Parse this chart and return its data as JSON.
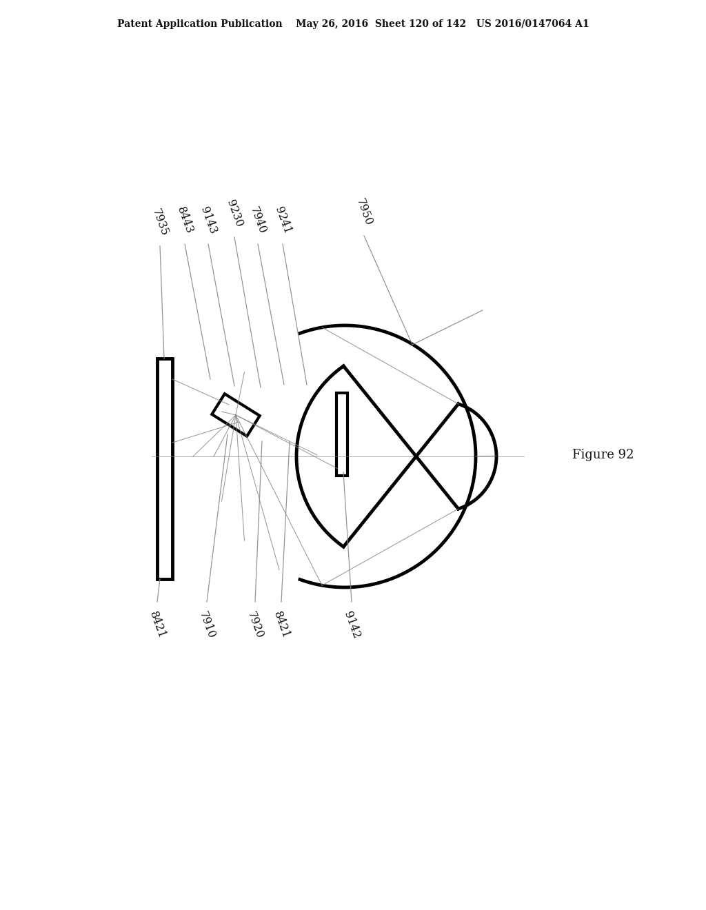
{
  "bg_color": "#ffffff",
  "header_text": "Patent Application Publication    May 26, 2016  Sheet 120 of 142   US 2016/0147064 A1",
  "figure_label": "Figure 92",
  "line_color": "#000000",
  "gray_color": "#888888",
  "thick_lw": 3.0,
  "thin_lw": 0.9,
  "label_fontsize": 11.5,
  "header_fontsize": 10.0,
  "figure_label_fontsize": 13
}
